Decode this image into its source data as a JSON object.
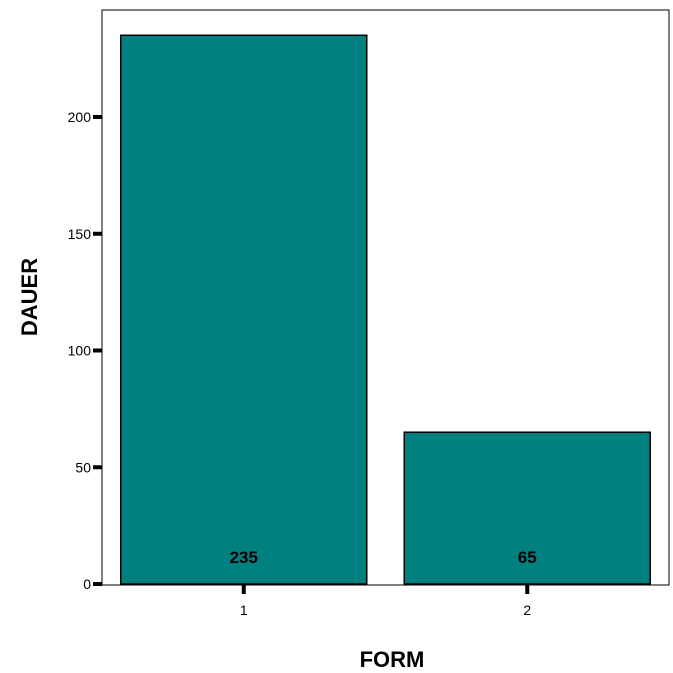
{
  "chart_data": {
    "type": "bar",
    "xlabel": "FORM",
    "ylabel": "DAUER",
    "categories": [
      "1",
      "2"
    ],
    "values": [
      235,
      65
    ],
    "data_labels": [
      "235",
      "65"
    ],
    "ylim": [
      0,
      240
    ],
    "yticks": [
      0,
      50,
      100,
      150,
      200
    ],
    "bar_color": "#008080",
    "bar_outline_color": "#000000",
    "grid": false,
    "legend": "none"
  }
}
